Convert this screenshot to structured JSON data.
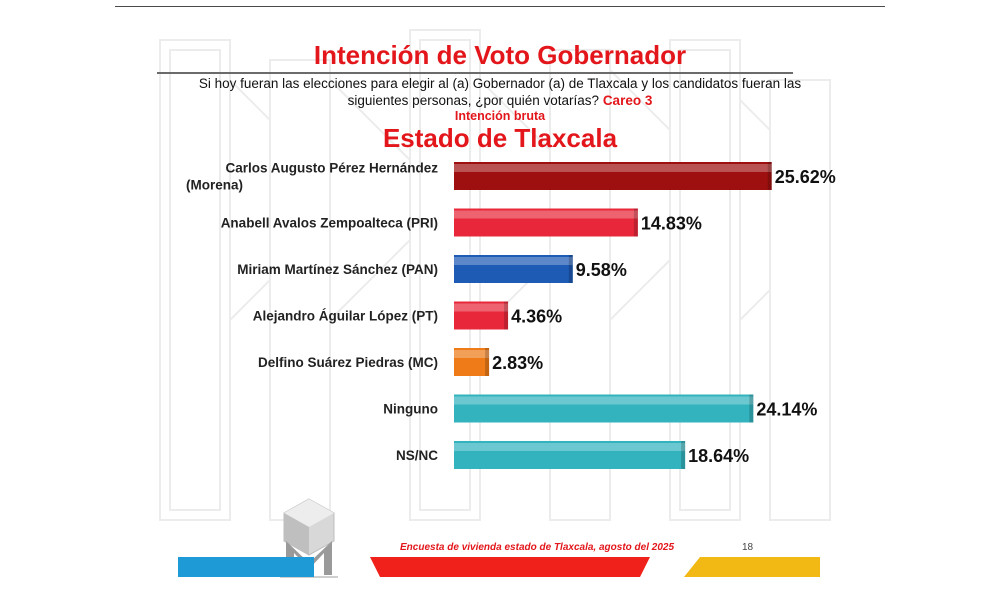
{
  "slide": {
    "title": "Intención de Voto Gobernador",
    "question": "Si hoy fueran las elecciones para elegir al (a) Gobernador (a) de Tlaxcala y los candidatos fueran las siguientes personas, ¿por quién votarías?",
    "careo": "Careo 3",
    "subtitle": "Intención bruta",
    "region": "Estado de Tlaxcala",
    "footer": "Encuesta de vivienda estado de Tlaxcala, agosto del 2025",
    "page_number": "18"
  },
  "chart_data": {
    "type": "bar",
    "orientation": "horizontal",
    "title": "Estado de Tlaxcala",
    "categories": [
      [
        "Carlos Augusto Pérez Hernández",
        "(Morena)"
      ],
      [
        "Anabell Avalos Zempoalteca (PRI)"
      ],
      [
        "Miriam Martínez Sánchez (PAN)"
      ],
      [
        "Alejandro Águilar López (PT)"
      ],
      [
        "Delfino Suárez Piedras (MC)"
      ],
      [
        "Ninguno"
      ],
      [
        "NS/NC"
      ]
    ],
    "values": [
      25.62,
      14.83,
      9.58,
      4.36,
      2.83,
      24.14,
      18.64
    ],
    "value_labels": [
      "25.62%",
      "14.83%",
      "9.58%",
      "4.36%",
      "2.83%",
      "24.14%",
      "18.64%"
    ],
    "colors": [
      "#9e1010",
      "#e8283a",
      "#1e5bb5",
      "#e8283a",
      "#ee7a18",
      "#33b3be",
      "#33b3be"
    ],
    "grid": false,
    "legend": "none"
  },
  "theme": {
    "accent": "#e3161b"
  }
}
